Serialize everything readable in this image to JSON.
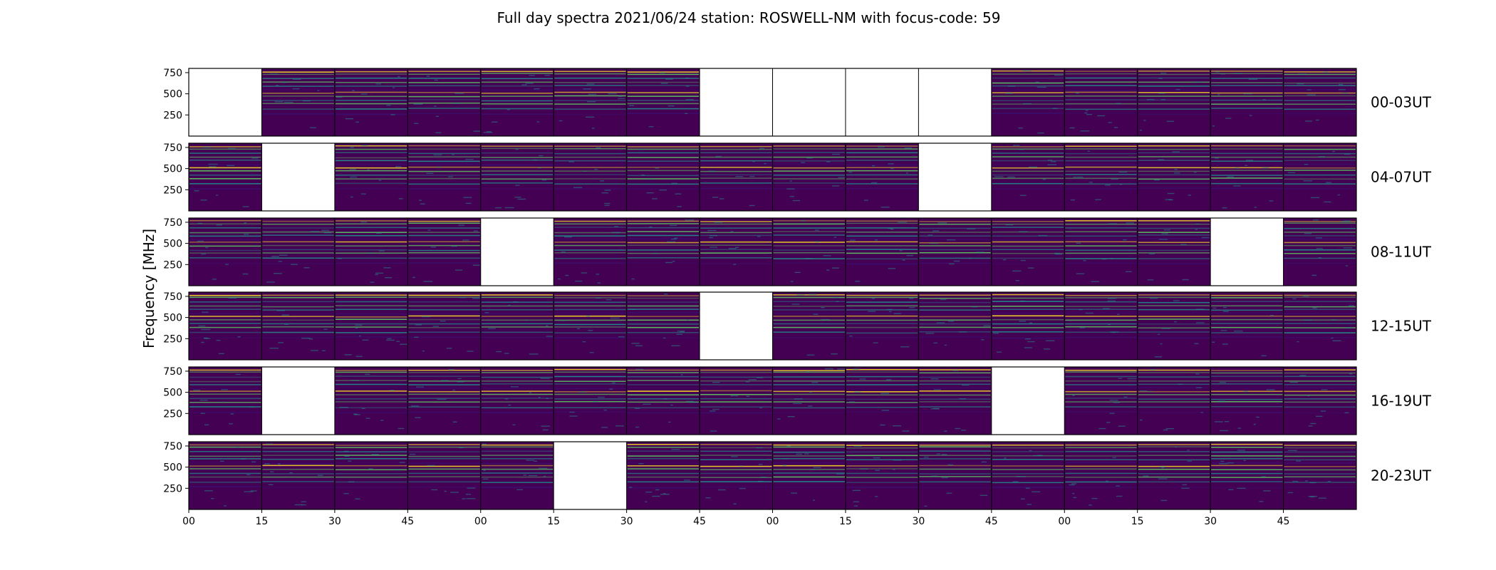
{
  "chart_data": {
    "type": "heatmap",
    "title": "Full day spectra 2021/06/24 station: ROSWELL-NM with focus-code: 59",
    "ylabel": "Frequency [MHz]",
    "ylim": [
      0,
      800
    ],
    "yticks": [
      "250",
      "500",
      "750"
    ],
    "xtick_labels": [
      "00",
      "15",
      "30",
      "45",
      "00",
      "15",
      "30",
      "45",
      "00",
      "15",
      "30",
      "45",
      "00",
      "15",
      "30",
      "45"
    ],
    "row_labels": [
      "00-03UT",
      "04-07UT",
      "08-11UT",
      "12-15UT",
      "16-19UT",
      "20-23UT"
    ],
    "colormap": "viridis",
    "colors": {
      "background": "#440154",
      "low": "#3b0f70",
      "mid": "#21918c",
      "high": "#5ec962",
      "peak": "#fde725",
      "missing": "#ffffff"
    },
    "band_lines_mhz": [
      770,
      740,
      690,
      640,
      600,
      555,
      520,
      480,
      430,
      390,
      330,
      270
    ],
    "rows": [
      {
        "label": "00-03UT",
        "present": [
          0,
          1,
          1,
          1,
          1,
          1,
          1,
          0,
          0,
          0,
          0,
          1,
          1,
          1,
          1,
          1
        ]
      },
      {
        "label": "04-07UT",
        "present": [
          1,
          0,
          1,
          1,
          1,
          1,
          1,
          1,
          1,
          1,
          0,
          1,
          1,
          1,
          1,
          1
        ]
      },
      {
        "label": "08-11UT",
        "present": [
          1,
          1,
          1,
          1,
          0,
          1,
          1,
          1,
          1,
          1,
          1,
          1,
          1,
          1,
          0,
          1
        ]
      },
      {
        "label": "12-15UT",
        "present": [
          1,
          1,
          1,
          1,
          1,
          1,
          1,
          0,
          1,
          1,
          1,
          1,
          1,
          1,
          1,
          1
        ]
      },
      {
        "label": "16-19UT",
        "present": [
          1,
          0,
          1,
          1,
          1,
          1,
          1,
          1,
          1,
          1,
          1,
          0,
          1,
          1,
          1,
          1
        ]
      },
      {
        "label": "20-23UT",
        "present": [
          1,
          1,
          1,
          1,
          1,
          0,
          1,
          1,
          1,
          1,
          1,
          1,
          1,
          1,
          1,
          1
        ]
      }
    ]
  }
}
